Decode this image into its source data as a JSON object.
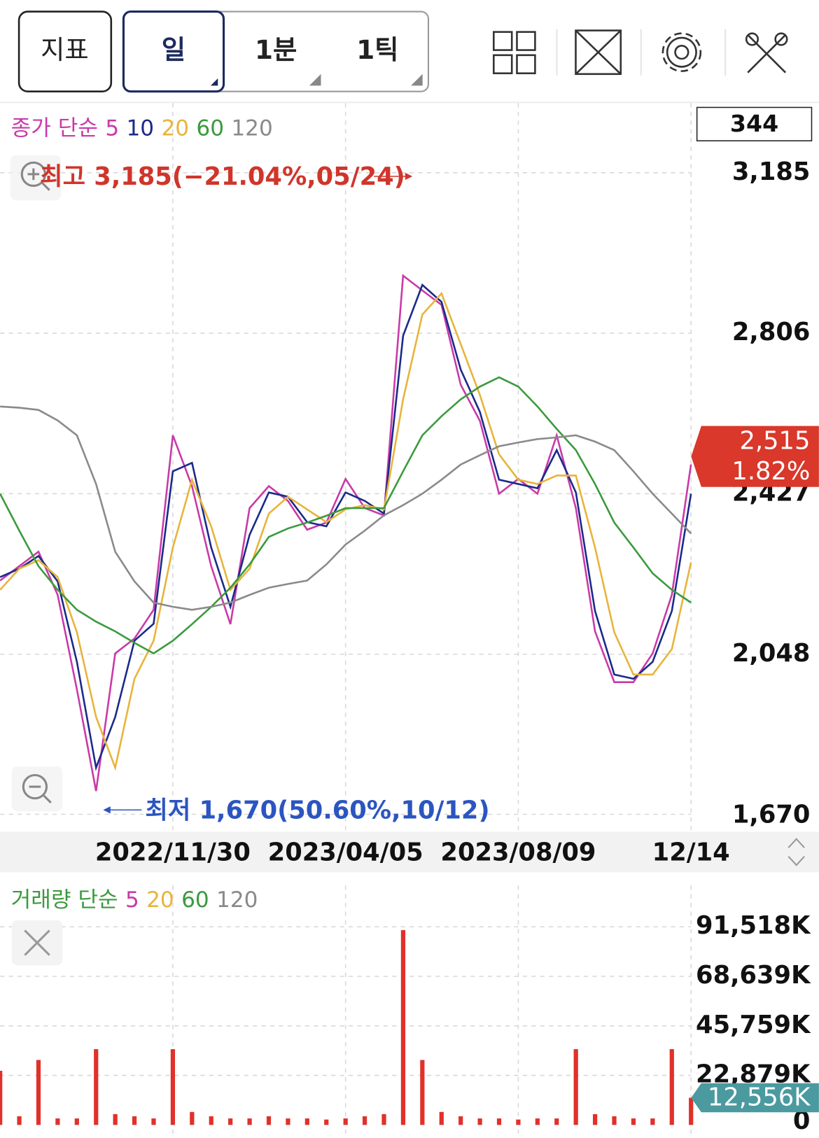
{
  "toolbar": {
    "buttons": [
      "지표",
      "일",
      "1분",
      "1틱"
    ]
  },
  "chart_data": [
    {
      "type": "line",
      "legend_title": "종가 단순",
      "visible_count": 344,
      "categories": [
        null,
        null,
        null,
        null,
        null,
        null,
        null,
        null,
        null,
        "2022/11/30",
        null,
        null,
        null,
        null,
        null,
        null,
        null,
        null,
        "2023/04/05",
        null,
        null,
        null,
        null,
        null,
        null,
        null,
        null,
        "2023/08/09",
        null,
        null,
        null,
        null,
        null,
        null,
        null,
        null,
        "12/14"
      ],
      "series": [
        {
          "name": "5",
          "color": "#c93aa8",
          "values": [
            2222,
            2256,
            2290,
            2188,
            1965,
            1725,
            2050,
            2085,
            2153,
            2565,
            2445,
            2256,
            2119,
            2393,
            2445,
            2410,
            2342,
            2359,
            2462,
            2393,
            2376,
            2942,
            2907,
            2873,
            2684,
            2599,
            2427,
            2462,
            2427,
            2565,
            2393,
            2102,
            1982,
            1982,
            2050,
            2188,
            2496
          ]
        },
        {
          "name": "10",
          "color": "#1b2a8a",
          "values": [
            2230,
            2250,
            2280,
            2220,
            2030,
            1780,
            1900,
            2080,
            2120,
            2480,
            2500,
            2300,
            2160,
            2330,
            2430,
            2420,
            2360,
            2350,
            2430,
            2410,
            2380,
            2800,
            2920,
            2880,
            2720,
            2620,
            2460,
            2450,
            2440,
            2530,
            2430,
            2150,
            2000,
            1990,
            2030,
            2150,
            2427
          ]
        },
        {
          "name": "20",
          "color": "#e8b43a",
          "values": [
            2200,
            2250,
            2270,
            2230,
            2100,
            1900,
            1780,
            1990,
            2080,
            2300,
            2460,
            2350,
            2200,
            2250,
            2380,
            2420,
            2390,
            2360,
            2390,
            2400,
            2390,
            2650,
            2850,
            2900,
            2780,
            2660,
            2520,
            2460,
            2450,
            2470,
            2470,
            2300,
            2100,
            2000,
            2000,
            2060,
            2265
          ]
        },
        {
          "name": "60",
          "color": "#3b9a3e",
          "values": [
            2427,
            2340,
            2256,
            2200,
            2153,
            2125,
            2102,
            2075,
            2050,
            2080,
            2119,
            2160,
            2205,
            2260,
            2325,
            2345,
            2359,
            2375,
            2393,
            2393,
            2393,
            2480,
            2565,
            2610,
            2650,
            2680,
            2702,
            2680,
            2633,
            2580,
            2530,
            2450,
            2359,
            2300,
            2239,
            2200,
            2170
          ]
        },
        {
          "name": "120",
          "color": "#8a8a8a",
          "values": [
            2633,
            2630,
            2625,
            2600,
            2565,
            2450,
            2290,
            2220,
            2170,
            2160,
            2153,
            2160,
            2170,
            2188,
            2205,
            2214,
            2222,
            2260,
            2307,
            2340,
            2376,
            2400,
            2427,
            2460,
            2496,
            2518,
            2539,
            2548,
            2556,
            2560,
            2565,
            2550,
            2530,
            2480,
            2427,
            2380,
            2333
          ]
        }
      ],
      "ylim": [
        1670,
        3185
      ],
      "yticks": [
        {
          "value": 1670,
          "label": "1,670"
        },
        {
          "value": 2048,
          "label": "2,048"
        },
        {
          "value": 2427,
          "label": "2,427"
        },
        {
          "value": 2806,
          "label": "2,806"
        },
        {
          "value": 3185,
          "label": "3,185"
        }
      ],
      "grid": true,
      "annotations": [
        "최고 3,185(−21.04%,05/24)",
        "최저 1,670(50.60%,10/12)"
      ],
      "last_price": {
        "value": 2515,
        "label": "2,515"
      },
      "last_change": {
        "value": 1.82,
        "label": "1.82%"
      },
      "tag_color": "#d9382b"
    },
    {
      "type": "bar",
      "legend_title": "거래량 단순",
      "legend": [
        {
          "name": "5",
          "color": "#c93aa8"
        },
        {
          "name": "20",
          "color": "#e8b43a"
        },
        {
          "name": "60",
          "color": "#3b9a3e"
        },
        {
          "name": "120",
          "color": "#8a8a8a"
        }
      ],
      "values": [
        25000000,
        4000000,
        30000000,
        3000000,
        3000000,
        35000000,
        5000000,
        4000000,
        3000000,
        35000000,
        6000000,
        4000000,
        3000000,
        3000000,
        4000000,
        3000000,
        3000000,
        2500000,
        3000000,
        4000000,
        5000000,
        90000000,
        30000000,
        6000000,
        4000000,
        3000000,
        3000000,
        2500000,
        3000000,
        3000000,
        35000000,
        5000000,
        4000000,
        3000000,
        3000000,
        35000000,
        12556000
      ],
      "color": "#e0312a",
      "ylim": [
        0,
        91518000
      ],
      "yticks": [
        {
          "value": 0,
          "label": "0"
        },
        {
          "value": 22879000,
          "label": "22,879K"
        },
        {
          "value": 45759000,
          "label": "45,759K"
        },
        {
          "value": 68639000,
          "label": "68,639K"
        },
        {
          "value": 91518000,
          "label": "91,518K"
        }
      ],
      "grid": true,
      "last_volume": {
        "value": 12556000,
        "label": "12,556K"
      },
      "tag_color": "#4a9aa0"
    }
  ]
}
